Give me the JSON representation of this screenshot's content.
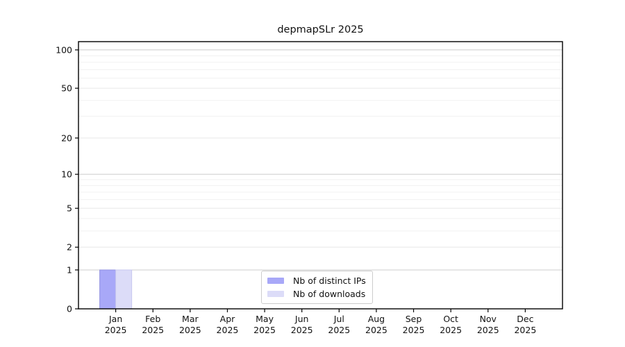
{
  "chart_data": {
    "type": "bar",
    "title": "depmapSLr 2025",
    "x_labels": [
      [
        "Jan",
        "2025"
      ],
      [
        "Feb",
        "2025"
      ],
      [
        "Mar",
        "2025"
      ],
      [
        "Apr",
        "2025"
      ],
      [
        "May",
        "2025"
      ],
      [
        "Jun",
        "2025"
      ],
      [
        "Jul",
        "2025"
      ],
      [
        "Aug",
        "2025"
      ],
      [
        "Sep",
        "2025"
      ],
      [
        "Oct",
        "2025"
      ],
      [
        "Nov",
        "2025"
      ],
      [
        "Dec",
        "2025"
      ]
    ],
    "series": [
      {
        "name": "Nb of distinct IPs",
        "color": "#a8a8f8",
        "edge": "#9191e0",
        "values": [
          1,
          0,
          0,
          0,
          0,
          0,
          0,
          0,
          0,
          0,
          0,
          0
        ]
      },
      {
        "name": "Nb of downloads",
        "color": "#dcdcf8",
        "edge": "#c7c7ee",
        "values": [
          1,
          0,
          0,
          0,
          0,
          0,
          0,
          0,
          0,
          0,
          0,
          0
        ]
      }
    ],
    "y_scale": "log10(value+1)",
    "y_ticks": [
      0,
      1,
      2,
      5,
      10,
      20,
      50,
      100
    ],
    "y_minor_gridlines": [
      3,
      4,
      6,
      7,
      8,
      9,
      30,
      40,
      60,
      70,
      80,
      90
    ],
    "y_emphasis_gridlines": [
      1,
      10,
      100
    ],
    "ylim": [
      0,
      116
    ],
    "grid": "horizontal",
    "legend_position": "bottom-center"
  },
  "colors": {
    "grid_major": "#cccccc",
    "grid_mid": "#e6e6e6",
    "grid_minor": "#f1f1f1",
    "axis": "#000000",
    "tick_label": "#111111",
    "legend_border": "#cccccc",
    "background": "#ffffff"
  }
}
